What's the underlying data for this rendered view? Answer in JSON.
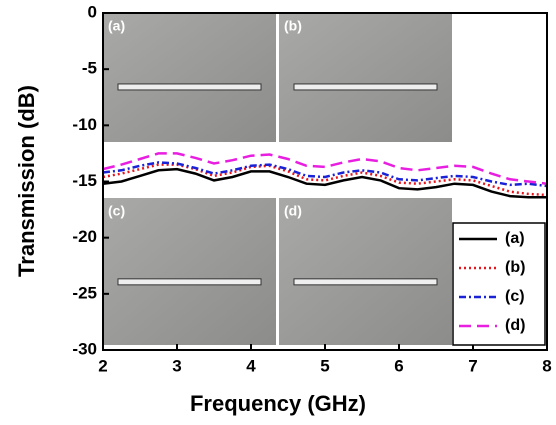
{
  "chart_data": {
    "type": "line",
    "x_label": "Frequency (GHz)",
    "y_label": "Transmission (dB)",
    "x": [
      2,
      2.25,
      2.5,
      2.75,
      3,
      3.25,
      3.5,
      3.75,
      4,
      4.25,
      4.5,
      4.75,
      5,
      5.25,
      5.5,
      5.75,
      6,
      6.25,
      6.5,
      6.75,
      7,
      7.25,
      7.5,
      7.75,
      8
    ],
    "series": [
      {
        "name": "(a)",
        "color": "#000000",
        "style": "solid",
        "values": [
          -15.2,
          -15.0,
          -14.5,
          -14.0,
          -13.9,
          -14.3,
          -14.9,
          -14.6,
          -14.1,
          -14.1,
          -14.6,
          -15.2,
          -15.3,
          -14.9,
          -14.6,
          -14.9,
          -15.6,
          -15.7,
          -15.5,
          -15.2,
          -15.3,
          -15.9,
          -16.3,
          -16.4,
          -16.4
        ]
      },
      {
        "name": "(b)",
        "color": "#e8141c",
        "style": "dotted",
        "values": [
          -14.6,
          -14.3,
          -13.9,
          -13.5,
          -13.5,
          -13.9,
          -14.5,
          -14.2,
          -13.7,
          -13.6,
          -14.1,
          -14.8,
          -14.9,
          -14.5,
          -14.2,
          -14.5,
          -15.1,
          -15.2,
          -15.0,
          -14.8,
          -14.9,
          -15.4,
          -15.9,
          -16.1,
          -16.2
        ]
      },
      {
        "name": "(c)",
        "color": "#1a22d6",
        "style": "dashdot",
        "values": [
          -14.2,
          -14.0,
          -13.6,
          -13.3,
          -13.4,
          -13.8,
          -14.3,
          -14.0,
          -13.6,
          -13.5,
          -13.9,
          -14.5,
          -14.6,
          -14.2,
          -14.0,
          -14.2,
          -14.8,
          -14.9,
          -14.7,
          -14.5,
          -14.6,
          -15.0,
          -15.3,
          -15.2,
          -15.4
        ]
      },
      {
        "name": "(d)",
        "color": "#e81ee0",
        "style": "dashed",
        "values": [
          -13.9,
          -13.5,
          -13.0,
          -12.5,
          -12.5,
          -12.9,
          -13.4,
          -13.1,
          -12.7,
          -12.6,
          -13.0,
          -13.6,
          -13.7,
          -13.3,
          -13.0,
          -13.2,
          -13.8,
          -14.0,
          -13.8,
          -13.6,
          -13.7,
          -14.3,
          -14.8,
          -15.0,
          -15.2
        ]
      }
    ],
    "insets": [
      {
        "label": "(a)"
      },
      {
        "label": "(b)"
      },
      {
        "label": "(c)"
      },
      {
        "label": "(d)"
      }
    ],
    "xlim": [
      2,
      8
    ],
    "ylim": [
      -30,
      0
    ],
    "xticks": [
      2,
      3,
      4,
      5,
      6,
      7,
      8
    ],
    "yticks": [
      0,
      -5,
      -10,
      -15,
      -20,
      -25,
      -30
    ],
    "legend": "lower right"
  }
}
